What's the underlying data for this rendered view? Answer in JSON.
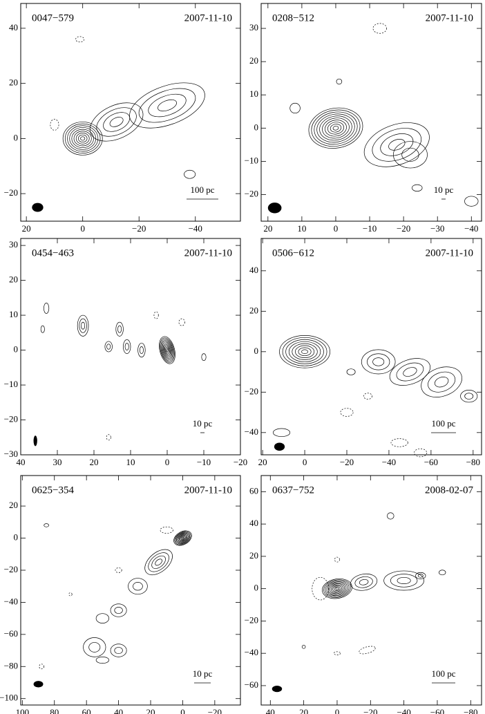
{
  "panels": [
    {
      "name": "0047−579",
      "date": "2007-11-10",
      "scale": "100 pc",
      "xlim": [
        22,
        -56
      ],
      "ylim": [
        -30,
        49
      ],
      "xticks": [
        20,
        0,
        {
          "value": -20,
          "label": "−20"
        },
        {
          "value": -40,
          "label": "−40"
        }
      ],
      "yticks": [
        {
          "value": -20,
          "label": "−20"
        },
        0,
        20,
        40
      ]
    },
    {
      "name": "0208−512",
      "date": "2007-11-10",
      "scale": "10 pc",
      "xlim": [
        22,
        -43
      ],
      "ylim": [
        -28,
        37.5
      ],
      "xticks": [
        20,
        10,
        0,
        {
          "value": -10,
          "label": "−10"
        },
        {
          "value": -20,
          "label": "−20"
        },
        {
          "value": -30,
          "label": "−30"
        },
        {
          "value": -40,
          "label": "−40"
        }
      ],
      "yticks": [
        {
          "value": -20,
          "label": "−20"
        },
        {
          "value": -10,
          "label": "−10"
        },
        0,
        10,
        20,
        30
      ]
    },
    {
      "name": "0454−463",
      "date": "2007-11-10",
      "scale": "10 pc",
      "xlim": [
        40,
        -20
      ],
      "ylim": [
        -30,
        32
      ],
      "xticks": [
        40,
        30,
        20,
        10,
        0,
        {
          "value": -10,
          "label": "−10"
        },
        {
          "value": -20,
          "label": "−20"
        }
      ],
      "yticks": [
        {
          "value": -30,
          "label": "−30"
        },
        {
          "value": -20,
          "label": "−20"
        },
        {
          "value": -10,
          "label": "−10"
        },
        0,
        10,
        20,
        30
      ]
    },
    {
      "name": "0506−612",
      "date": "2007-11-10",
      "scale": "100 pc",
      "xlim": [
        20.7,
        -84
      ],
      "ylim": [
        -51,
        56
      ],
      "xticks": [
        20,
        0,
        {
          "value": -20,
          "label": "−20"
        },
        {
          "value": -40,
          "label": "−40"
        },
        {
          "value": -60,
          "label": "−60"
        },
        {
          "value": -80,
          "label": "−80"
        }
      ],
      "yticks": [
        {
          "value": -40,
          "label": "−40"
        },
        {
          "value": -20,
          "label": "−20"
        },
        0,
        20,
        40
      ]
    },
    {
      "name": "0625−354",
      "date": "2007-11-10",
      "scale": "10 pc",
      "xlim": [
        101,
        -36
      ],
      "ylim": [
        -104,
        39
      ],
      "xticks": [
        100,
        80,
        60,
        40,
        20,
        0,
        {
          "value": -20,
          "label": "−20"
        }
      ],
      "yticks": [
        {
          "value": -100,
          "label": "−100"
        },
        {
          "value": -80,
          "label": "−80"
        },
        {
          "value": -60,
          "label": "−60"
        },
        {
          "value": -40,
          "label": "−40"
        },
        {
          "value": -20,
          "label": "−20"
        },
        0,
        20
      ]
    },
    {
      "name": "0637−752",
      "date": "2008-02-07",
      "scale": "100 pc",
      "xlim": [
        45.5,
        -86.5
      ],
      "ylim": [
        -72,
        70
      ],
      "xticks": [
        40,
        20,
        0,
        {
          "value": -20,
          "label": "−20"
        },
        {
          "value": -40,
          "label": "−40"
        },
        {
          "value": -60,
          "label": "−60"
        },
        {
          "value": -80,
          "label": "−80"
        }
      ],
      "yticks": [
        {
          "value": -60,
          "label": "−60"
        },
        {
          "value": -40,
          "label": "−40"
        },
        {
          "value": -20,
          "label": "−20"
        },
        0,
        20,
        40,
        60
      ]
    }
  ]
}
